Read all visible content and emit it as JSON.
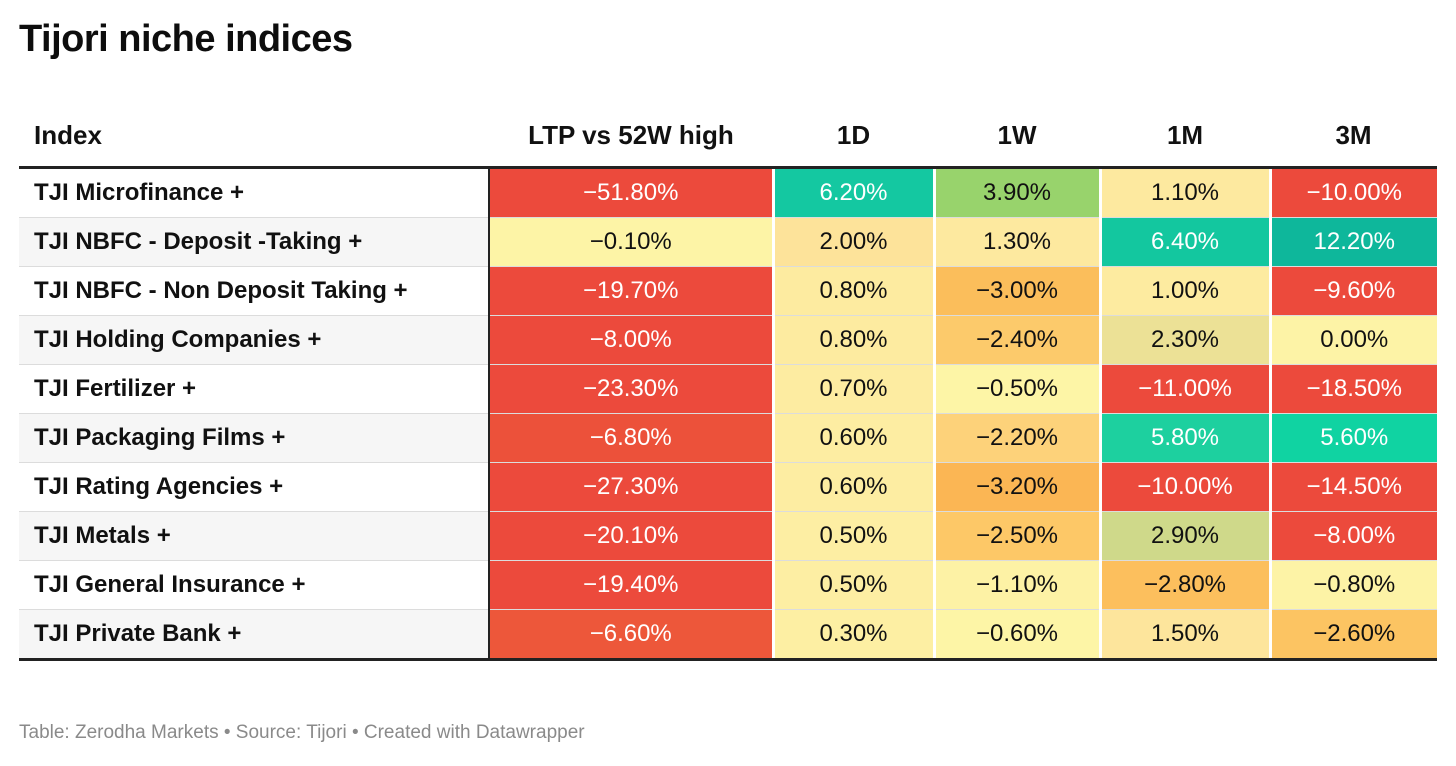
{
  "title": "Tijori niche indices",
  "footer": "Table: Zerodha Markets • Source: Tijori • Created with Datawrapper",
  "chart_data": {
    "type": "table",
    "title": "Tijori niche indices",
    "columns": [
      "Index",
      "LTP vs 52W high",
      "1D",
      "1W",
      "1M",
      "3M"
    ],
    "rows": [
      {
        "name": "TJI Microfinance +",
        "values": [
          "-51.80%",
          "6.20%",
          "3.90%",
          "1.10%",
          "-10.00%"
        ],
        "colors": [
          "#ec4a3c",
          "#14c8a1",
          "#98d36c",
          "#fde99f",
          "#ec4a3c"
        ]
      },
      {
        "name": "TJI NBFC - Deposit -Taking +",
        "values": [
          "-0.10%",
          "2.00%",
          "1.30%",
          "6.40%",
          "12.20%"
        ],
        "colors": [
          "#fdf4a6",
          "#fde39a",
          "#fde99f",
          "#13c79f",
          "#0eb79b"
        ]
      },
      {
        "name": "TJI NBFC - Non Deposit Taking +",
        "values": [
          "-19.70%",
          "0.80%",
          "-3.00%",
          "1.00%",
          "-9.60%"
        ],
        "colors": [
          "#ec4a3c",
          "#fdeba0",
          "#fbbe5b",
          "#fdeba0",
          "#ec4a3c"
        ]
      },
      {
        "name": "TJI Holding Companies +",
        "values": [
          "-8.00%",
          "0.80%",
          "-2.40%",
          "2.30%",
          "0.00%"
        ],
        "colors": [
          "#ec4a3c",
          "#fdeba0",
          "#fcca6b",
          "#ece196",
          "#fdf3a6"
        ]
      },
      {
        "name": "TJI Fertilizer +",
        "values": [
          "-23.30%",
          "0.70%",
          "-0.50%",
          "-11.00%",
          "-18.50%"
        ],
        "colors": [
          "#ec4a3c",
          "#fdeca1",
          "#fdf5a6",
          "#ec4a3c",
          "#ec4a3c"
        ]
      },
      {
        "name": "TJI Packaging Films +",
        "values": [
          "-6.80%",
          "0.60%",
          "-2.20%",
          "5.80%",
          "5.60%"
        ],
        "colors": [
          "#ec513a",
          "#fdeda2",
          "#fdd27a",
          "#1dd09f",
          "#10d3a2"
        ]
      },
      {
        "name": "TJI Rating Agencies +",
        "values": [
          "-27.30%",
          "0.60%",
          "-3.20%",
          "-10.00%",
          "-14.50%"
        ],
        "colors": [
          "#ec4a3c",
          "#fdeda2",
          "#fbb654",
          "#ec4a3c",
          "#ec4a3c"
        ]
      },
      {
        "name": "TJI Metals +",
        "values": [
          "-20.10%",
          "0.50%",
          "-2.50%",
          "2.90%",
          "-8.00%"
        ],
        "colors": [
          "#ec4a3c",
          "#fdeea3",
          "#fdc867",
          "#cfd98a",
          "#ec4a3c"
        ]
      },
      {
        "name": "TJI General Insurance +",
        "values": [
          "-19.40%",
          "0.50%",
          "-1.10%",
          "-2.80%",
          "-0.80%"
        ],
        "colors": [
          "#ec4a3c",
          "#fdeea3",
          "#fdf2a5",
          "#fcbf5d",
          "#fdf3a6"
        ]
      },
      {
        "name": "TJI Private Bank +",
        "values": [
          "-6.60%",
          "0.30%",
          "-0.60%",
          "1.50%",
          "-2.60%"
        ],
        "colors": [
          "#ed573a",
          "#fdefa3",
          "#fdf5a6",
          "#fde59c",
          "#fcc462"
        ]
      }
    ]
  }
}
